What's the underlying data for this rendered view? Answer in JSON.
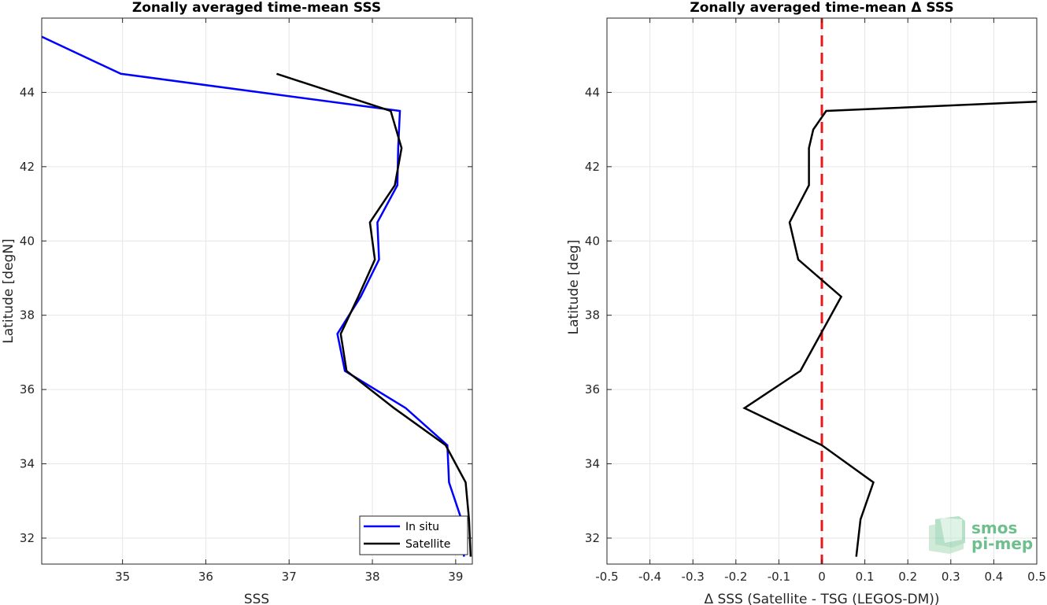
{
  "chart_data": [
    {
      "type": "line",
      "title": "Zonally averaged time-mean SSS",
      "xlabel": "SSS",
      "ylabel": "Latitude [degN]",
      "xlim": [
        34.03,
        39.2
      ],
      "ylim": [
        31.3,
        46.0
      ],
      "xticks": [
        35,
        36,
        37,
        38,
        39
      ],
      "yticks": [
        32,
        34,
        36,
        38,
        40,
        42,
        44
      ],
      "grid": true,
      "legend": {
        "position": "bottom-right",
        "entries": [
          "In situ",
          "Satellite"
        ]
      },
      "series": [
        {
          "name": "In situ",
          "color": "#0000ff",
          "x": [
            34.03,
            34.98,
            38.33,
            38.31,
            38.3,
            38.06,
            38.08,
            37.86,
            37.58,
            37.67,
            38.4,
            38.9,
            38.92,
            39.07,
            39.1
          ],
          "y": [
            45.5,
            44.5,
            43.5,
            42.5,
            41.5,
            40.5,
            39.5,
            38.5,
            37.5,
            36.5,
            35.5,
            34.5,
            33.5,
            32.5,
            31.5
          ]
        },
        {
          "name": "Satellite",
          "color": "#000000",
          "x": [
            36.85,
            38.22,
            38.35,
            38.27,
            37.97,
            38.03,
            37.83,
            37.62,
            37.69,
            38.26,
            38.88,
            39.12,
            39.16,
            39.18
          ],
          "y": [
            44.5,
            43.5,
            42.5,
            41.5,
            40.5,
            39.5,
            38.5,
            37.5,
            36.5,
            35.5,
            34.5,
            33.5,
            32.5,
            31.5
          ]
        }
      ]
    },
    {
      "type": "line",
      "title": "Zonally averaged time-mean Δ SSS",
      "xlabel": "Δ SSS (Satellite - TSG (LEGOS-DM))",
      "ylabel": "Latitude [deg]",
      "xlim": [
        -0.5,
        0.5
      ],
      "ylim": [
        31.3,
        46.0
      ],
      "xticks": [
        -0.5,
        -0.4,
        -0.3,
        -0.2,
        -0.1,
        0,
        0.1,
        0.2,
        0.3,
        0.4,
        0.5
      ],
      "yticks": [
        32,
        34,
        36,
        38,
        40,
        42,
        44
      ],
      "grid": true,
      "zero_line": {
        "x": 0,
        "color": "#e8191b",
        "style": "dashed"
      },
      "series": [
        {
          "color": "#000000",
          "x": [
            0.5,
            0.01,
            -0.02,
            -0.03,
            -0.03,
            -0.075,
            -0.055,
            0.045,
            -0.05,
            -0.18,
            0.0,
            0.12,
            0.09,
            0.08
          ],
          "y": [
            43.75,
            43.5,
            43.0,
            42.5,
            41.5,
            40.5,
            39.5,
            38.5,
            36.5,
            35.5,
            34.5,
            33.5,
            32.5,
            31.5
          ]
        }
      ]
    }
  ],
  "logo": {
    "line1": "smos",
    "line2": "pi-mep",
    "color": "#6fbf8e"
  }
}
